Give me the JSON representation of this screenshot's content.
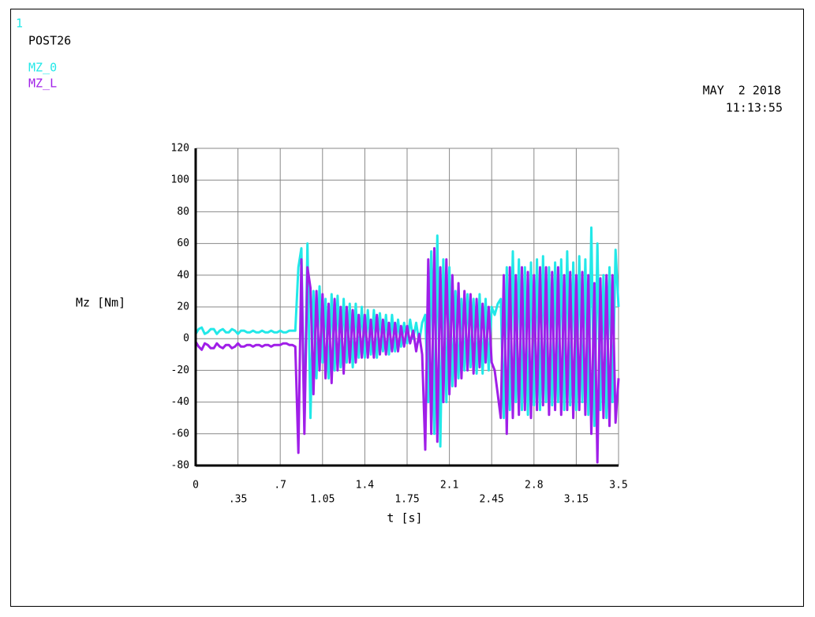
{
  "chart_data": {
    "type": "line",
    "window_number": "1",
    "title": "POST26",
    "date": "MAY  2 2018",
    "time": "11:13:55",
    "y_label": "Mz [Nm]",
    "x_label": "t [s]",
    "grid": true,
    "xlim": [
      0,
      3.5
    ],
    "ylim": [
      -80,
      120
    ],
    "xticks": [
      0,
      {
        "value": 0.35,
        "label": ".35"
      },
      {
        "value": 0.7,
        "label": ".7"
      },
      1.05,
      1.4,
      1.75,
      2.1,
      2.45,
      2.8,
      3.15,
      3.5
    ],
    "yticks": [
      120,
      100,
      80,
      60,
      40,
      20,
      0,
      -20,
      -40,
      -60,
      -80
    ],
    "x": [
      0,
      0.025,
      0.05,
      0.075,
      0.1,
      0.125,
      0.15,
      0.175,
      0.2,
      0.225,
      0.25,
      0.275,
      0.3,
      0.325,
      0.35,
      0.375,
      0.4,
      0.425,
      0.45,
      0.475,
      0.5,
      0.525,
      0.55,
      0.575,
      0.6,
      0.625,
      0.65,
      0.675,
      0.7,
      0.725,
      0.75,
      0.775,
      0.8,
      0.825,
      0.85,
      0.875,
      0.9,
      0.925,
      0.95,
      0.975,
      1,
      1.025,
      1.05,
      1.075,
      1.1,
      1.125,
      1.15,
      1.175,
      1.2,
      1.225,
      1.25,
      1.275,
      1.3,
      1.325,
      1.35,
      1.375,
      1.4,
      1.425,
      1.45,
      1.475,
      1.5,
      1.525,
      1.55,
      1.575,
      1.6,
      1.625,
      1.65,
      1.675,
      1.7,
      1.725,
      1.75,
      1.775,
      1.8,
      1.825,
      1.85,
      1.875,
      1.9,
      1.925,
      1.95,
      1.975,
      2,
      2.025,
      2.05,
      2.075,
      2.1,
      2.125,
      2.15,
      2.175,
      2.2,
      2.225,
      2.25,
      2.275,
      2.3,
      2.325,
      2.35,
      2.375,
      2.4,
      2.425,
      2.45,
      2.475,
      2.5,
      2.525,
      2.55,
      2.575,
      2.6,
      2.625,
      2.65,
      2.675,
      2.7,
      2.725,
      2.75,
      2.775,
      2.8,
      2.825,
      2.85,
      2.875,
      2.9,
      2.925,
      2.95,
      2.975,
      3,
      3.025,
      3.05,
      3.075,
      3.1,
      3.125,
      3.15,
      3.175,
      3.2,
      3.225,
      3.25,
      3.275,
      3.3,
      3.325,
      3.35,
      3.375,
      3.4,
      3.425,
      3.45,
      3.475,
      3.5
    ],
    "series": [
      {
        "name": "MZ_0",
        "color": "#22e8e8",
        "values": [
          3,
          6,
          7,
          3,
          4,
          6,
          6,
          3,
          5,
          6,
          4,
          4,
          6,
          5,
          3,
          5,
          5,
          4,
          4,
          5,
          4,
          4,
          5,
          4,
          4,
          5,
          4,
          4,
          5,
          4,
          4,
          5,
          5,
          5,
          45,
          57,
          -55,
          60,
          -50,
          30,
          -25,
          33,
          -15,
          25,
          -25,
          28,
          -20,
          27,
          -18,
          25,
          -15,
          22,
          -18,
          22,
          -12,
          20,
          -12,
          18,
          -10,
          18,
          -12,
          16,
          -8,
          15,
          -10,
          15,
          -8,
          12,
          -5,
          10,
          -3,
          12,
          0,
          10,
          -2,
          10,
          15,
          -40,
          55,
          -60,
          65,
          -68,
          50,
          -40,
          45,
          -30,
          30,
          -25,
          25,
          -20,
          28,
          -18,
          25,
          -22,
          28,
          -22,
          25,
          -20,
          20,
          15,
          22,
          25,
          -50,
          45,
          -45,
          55,
          -40,
          50,
          -45,
          45,
          -48,
          48,
          -42,
          50,
          -45,
          52,
          -40,
          45,
          -42,
          48,
          -40,
          50,
          -45,
          55,
          -42,
          48,
          -45,
          52,
          -40,
          50,
          -48,
          70,
          -55,
          60,
          -45,
          40,
          -50,
          45,
          -40,
          56,
          20
        ]
      },
      {
        "name": "MZ_L",
        "color": "#a01ee8",
        "values": [
          -2,
          -5,
          -7,
          -3,
          -4,
          -6,
          -6,
          -3,
          -5,
          -6,
          -4,
          -4,
          -6,
          -5,
          -3,
          -5,
          -5,
          -4,
          -4,
          -5,
          -4,
          -4,
          -5,
          -4,
          -4,
          -5,
          -4,
          -4,
          -4,
          -3,
          -3,
          -4,
          -4,
          -5,
          -72,
          50,
          -60,
          45,
          32,
          -35,
          30,
          -20,
          28,
          -25,
          22,
          -28,
          25,
          -20,
          20,
          -22,
          20,
          -15,
          18,
          -15,
          15,
          -12,
          15,
          -12,
          12,
          -12,
          15,
          -10,
          12,
          -10,
          10,
          -8,
          10,
          -8,
          8,
          -5,
          8,
          -3,
          5,
          -8,
          3,
          -10,
          -70,
          50,
          -60,
          57,
          -65,
          45,
          -40,
          50,
          -35,
          40,
          -30,
          35,
          -25,
          30,
          -20,
          28,
          -22,
          25,
          -18,
          22,
          -15,
          20,
          -15,
          -20,
          -35,
          -50,
          40,
          -60,
          45,
          -50,
          40,
          -48,
          45,
          -45,
          42,
          -50,
          40,
          -45,
          45,
          -42,
          45,
          -48,
          42,
          -45,
          45,
          -48,
          40,
          -45,
          42,
          -50,
          40,
          -45,
          42,
          -48,
          40,
          -60,
          35,
          -78,
          38,
          -50,
          40,
          -55,
          40,
          -53,
          -25
        ]
      }
    ]
  }
}
